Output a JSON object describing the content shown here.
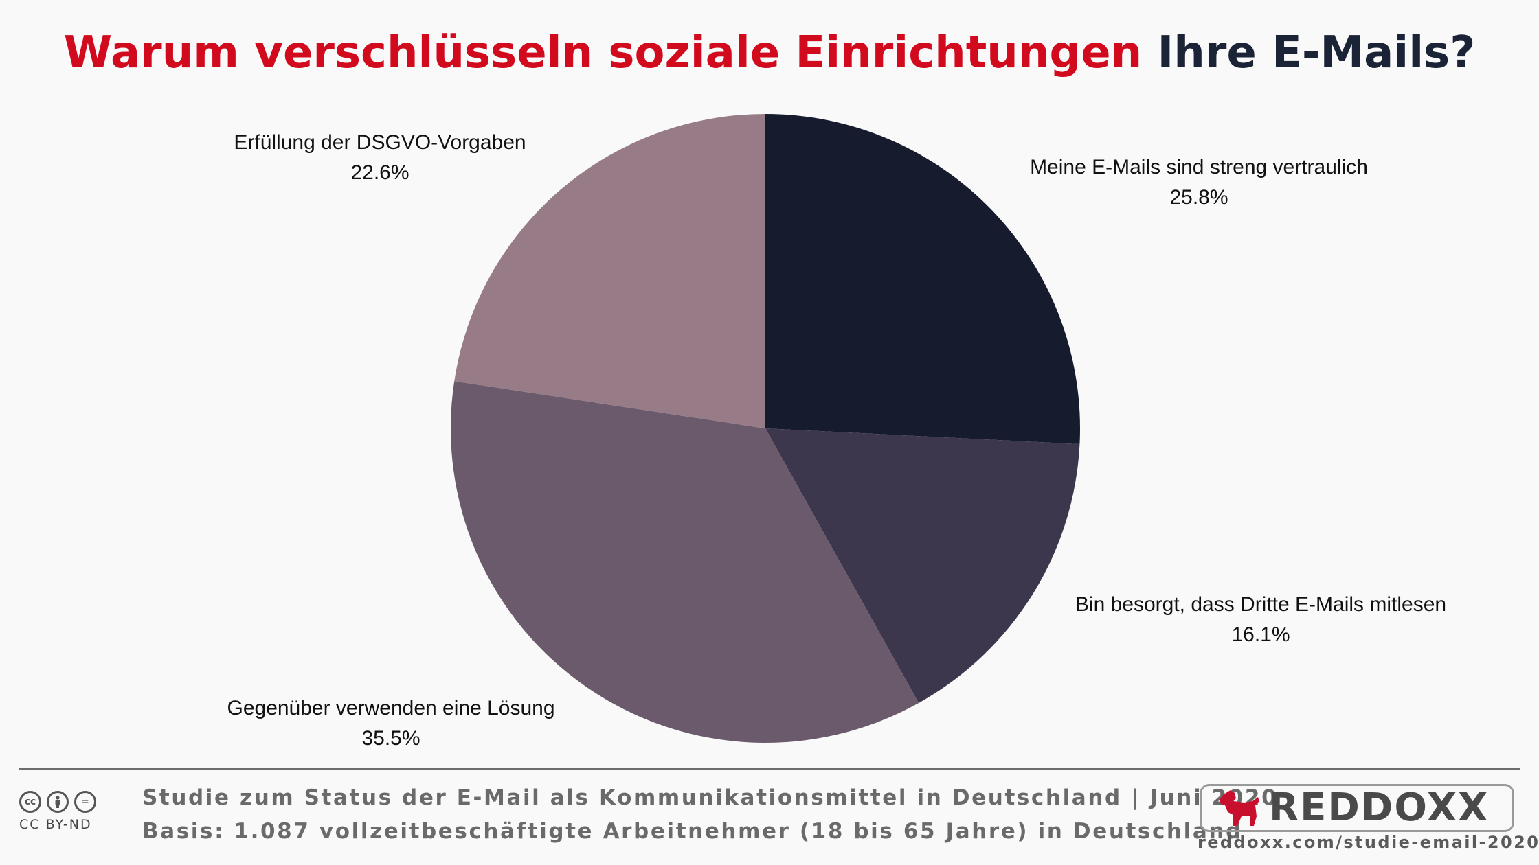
{
  "header": {
    "title_red": "Warum verschlüsseln soziale Einrichtungen",
    "title_dark": "Ihre E-Mails?"
  },
  "chart_data": {
    "type": "pie",
    "title": "Warum verschlüsseln soziale Einrichtungen Ihre E-Mails?",
    "slices": [
      {
        "label": "Meine E-Mails sind streng vertraulich",
        "value": 25.8,
        "value_label": "25.8%",
        "color": "#161b2e"
      },
      {
        "label": "Bin besorgt, dass Dritte E-Mails mitlesen",
        "value": 16.1,
        "value_label": "16.1%",
        "color": "#3d374d"
      },
      {
        "label": "Gegenüber verwenden eine Lösung",
        "value": 35.5,
        "value_label": "35.5%",
        "color": "#6b5a6c"
      },
      {
        "label": "Erfüllung der DSGVO-Vorgaben",
        "value": 22.6,
        "value_label": "22.6%",
        "color": "#977c88"
      }
    ],
    "legend": "none"
  },
  "footer": {
    "study_line": "Studie zum Status der E-Mail als Kommunikationsmittel in Deutschland | Juni 2020",
    "basis_line": "Basis: 1.087 vollzeitbeschäftigte Arbeitnehmer (18 bis 65 Jahre) in Deutschland",
    "license": "CC BY-ND",
    "brand": "REDDOXX",
    "url": "reddoxx.com/studie-email-2020/",
    "brand_color": "#c8102e"
  }
}
